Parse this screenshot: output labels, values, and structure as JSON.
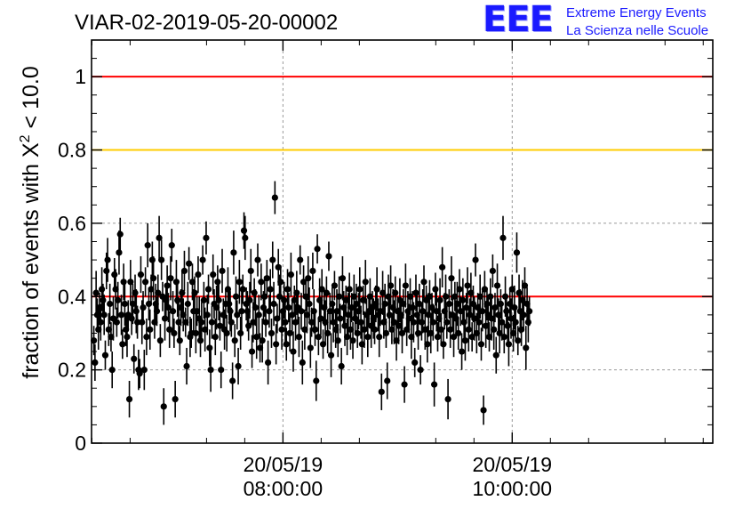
{
  "chart_data": {
    "type": "scatter",
    "title": "VIAR-02-2019-05-20-00002",
    "ylabel_prefix": "fraction of events with ",
    "ylabel_symbol": "X",
    "ylabel_superscript": "2",
    "ylabel_suffix": " < 10.0",
    "xlabel": "",
    "ylim": [
      0,
      1.1
    ],
    "yticks": [
      "0",
      "0.2",
      "0.4",
      "0.6",
      "0.8",
      "1"
    ],
    "xticks": [
      {
        "date": "20/05/19",
        "time": "08:00:00"
      },
      {
        "date": "20/05/19",
        "time": "10:00:00"
      }
    ],
    "xlim_hours": [
      6.33,
      11.75
    ],
    "grid": true,
    "reference_lines": [
      {
        "y": 1.0,
        "color": "#ff0000"
      },
      {
        "y": 0.8,
        "color": "#ffcc00"
      },
      {
        "y": 0.4,
        "color": "#ff0000"
      }
    ],
    "marker_color": "#000000",
    "series": [
      {
        "x_start_hours": 6.35,
        "x_step_hours": 0.01,
        "values": [
          0.28,
          0.22,
          0.41,
          0.35,
          0.31,
          0.37,
          0.33,
          0.42,
          0.39,
          0.35,
          0.24,
          0.47,
          0.5,
          0.31,
          0.38,
          0.29,
          0.2,
          0.34,
          0.46,
          0.42,
          0.33,
          0.39,
          0.52,
          0.57,
          0.35,
          0.27,
          0.44,
          0.38,
          0.31,
          0.29,
          0.35,
          0.12,
          0.44,
          0.34,
          0.38,
          0.23,
          0.41,
          0.36,
          0.33,
          0.2,
          0.19,
          0.46,
          0.33,
          0.37,
          0.2,
          0.44,
          0.29,
          0.54,
          0.38,
          0.31,
          0.42,
          0.5,
          0.45,
          0.33,
          0.38,
          0.36,
          0.41,
          0.56,
          0.28,
          0.5,
          0.4,
          0.1,
          0.34,
          0.39,
          0.43,
          0.37,
          0.31,
          0.45,
          0.54,
          0.36,
          0.3,
          0.12,
          0.44,
          0.39,
          0.33,
          0.28,
          0.37,
          0.41,
          0.35,
          0.47,
          0.33,
          0.21,
          0.38,
          0.49,
          0.29,
          0.3,
          0.44,
          0.36,
          0.41,
          0.3,
          0.36,
          0.46,
          0.34,
          0.28,
          0.33,
          0.5,
          0.39,
          0.31,
          0.56,
          0.35,
          0.42,
          0.26,
          0.2,
          0.33,
          0.46,
          0.38,
          0.29,
          0.37,
          0.44,
          0.39,
          0.32,
          0.2,
          0.47,
          0.35,
          0.31,
          0.38,
          0.3,
          0.42,
          0.38,
          0.36,
          0.33,
          0.17,
          0.52,
          0.28,
          0.4,
          0.35,
          0.21,
          0.44,
          0.3,
          0.36,
          0.42,
          0.58,
          0.56,
          0.38,
          0.36,
          0.32,
          0.39,
          0.47,
          0.25,
          0.33,
          0.41,
          0.37,
          0.29,
          0.5,
          0.35,
          0.26,
          0.44,
          0.28,
          0.37,
          0.4,
          0.33,
          0.45,
          0.22,
          0.36,
          0.42,
          0.3,
          0.5,
          0.38,
          0.67,
          0.27,
          0.34,
          0.48,
          0.4,
          0.44,
          0.31,
          0.36,
          0.39,
          0.33,
          0.27,
          0.42,
          0.37,
          0.3,
          0.46,
          0.35,
          0.25,
          0.39,
          0.33,
          0.41,
          0.37,
          0.29,
          0.5,
          0.36,
          0.22,
          0.44,
          0.31,
          0.4,
          0.35,
          0.45,
          0.38,
          0.26,
          0.33,
          0.47,
          0.36,
          0.31,
          0.17,
          0.53,
          0.29,
          0.39,
          0.34,
          0.42,
          0.27,
          0.37,
          0.33,
          0.41,
          0.3,
          0.51,
          0.36,
          0.24,
          0.38,
          0.33,
          0.43,
          0.31,
          0.36,
          0.28,
          0.4,
          0.34,
          0.21,
          0.45,
          0.37,
          0.32,
          0.39,
          0.29,
          0.35,
          0.42,
          0.31,
          0.37,
          0.28,
          0.4,
          0.34,
          0.38,
          0.3,
          0.36,
          0.42,
          0.33,
          0.27,
          0.39,
          0.31,
          0.44,
          0.35,
          0.29,
          0.36,
          0.4,
          0.32,
          0.37,
          0.34,
          0.31,
          0.38,
          0.42,
          0.35,
          0.29,
          0.36,
          0.14,
          0.41,
          0.33,
          0.38,
          0.3,
          0.17,
          0.4,
          0.35,
          0.43,
          0.31,
          0.37,
          0.33,
          0.41,
          0.28,
          0.36,
          0.32,
          0.39,
          0.35,
          0.3,
          0.38,
          0.16,
          0.43,
          0.31,
          0.36,
          0.34,
          0.4,
          0.29,
          0.37,
          0.33,
          0.22,
          0.41,
          0.35,
          0.3,
          0.38,
          0.2,
          0.33,
          0.36,
          0.44,
          0.31,
          0.39,
          0.27,
          0.35,
          0.4,
          0.3,
          0.37,
          0.33,
          0.16,
          0.42,
          0.36,
          0.29,
          0.34,
          0.39,
          0.31,
          0.48,
          0.27,
          0.36,
          0.4,
          0.33,
          0.12,
          0.38,
          0.31,
          0.45,
          0.35,
          0.29,
          0.4,
          0.34,
          0.38,
          0.3,
          0.42,
          0.36,
          0.25,
          0.39,
          0.33,
          0.28,
          0.37,
          0.43,
          0.31,
          0.35,
          0.41,
          0.29,
          0.38,
          0.34,
          0.5,
          0.3,
          0.37,
          0.33,
          0.4,
          0.27,
          0.36,
          0.09,
          0.42,
          0.32,
          0.38,
          0.35,
          0.29,
          0.4,
          0.34,
          0.47,
          0.31,
          0.37,
          0.24,
          0.43,
          0.35,
          0.3,
          0.38,
          0.33,
          0.56,
          0.29,
          0.4,
          0.36,
          0.32,
          0.27,
          0.38,
          0.34,
          0.42,
          0.3,
          0.37,
          0.33,
          0.52,
          0.28,
          0.41,
          0.36,
          0.31,
          0.39,
          0.35,
          0.43,
          0.26,
          0.38,
          0.33,
          0.36
        ]
      }
    ]
  }
}
